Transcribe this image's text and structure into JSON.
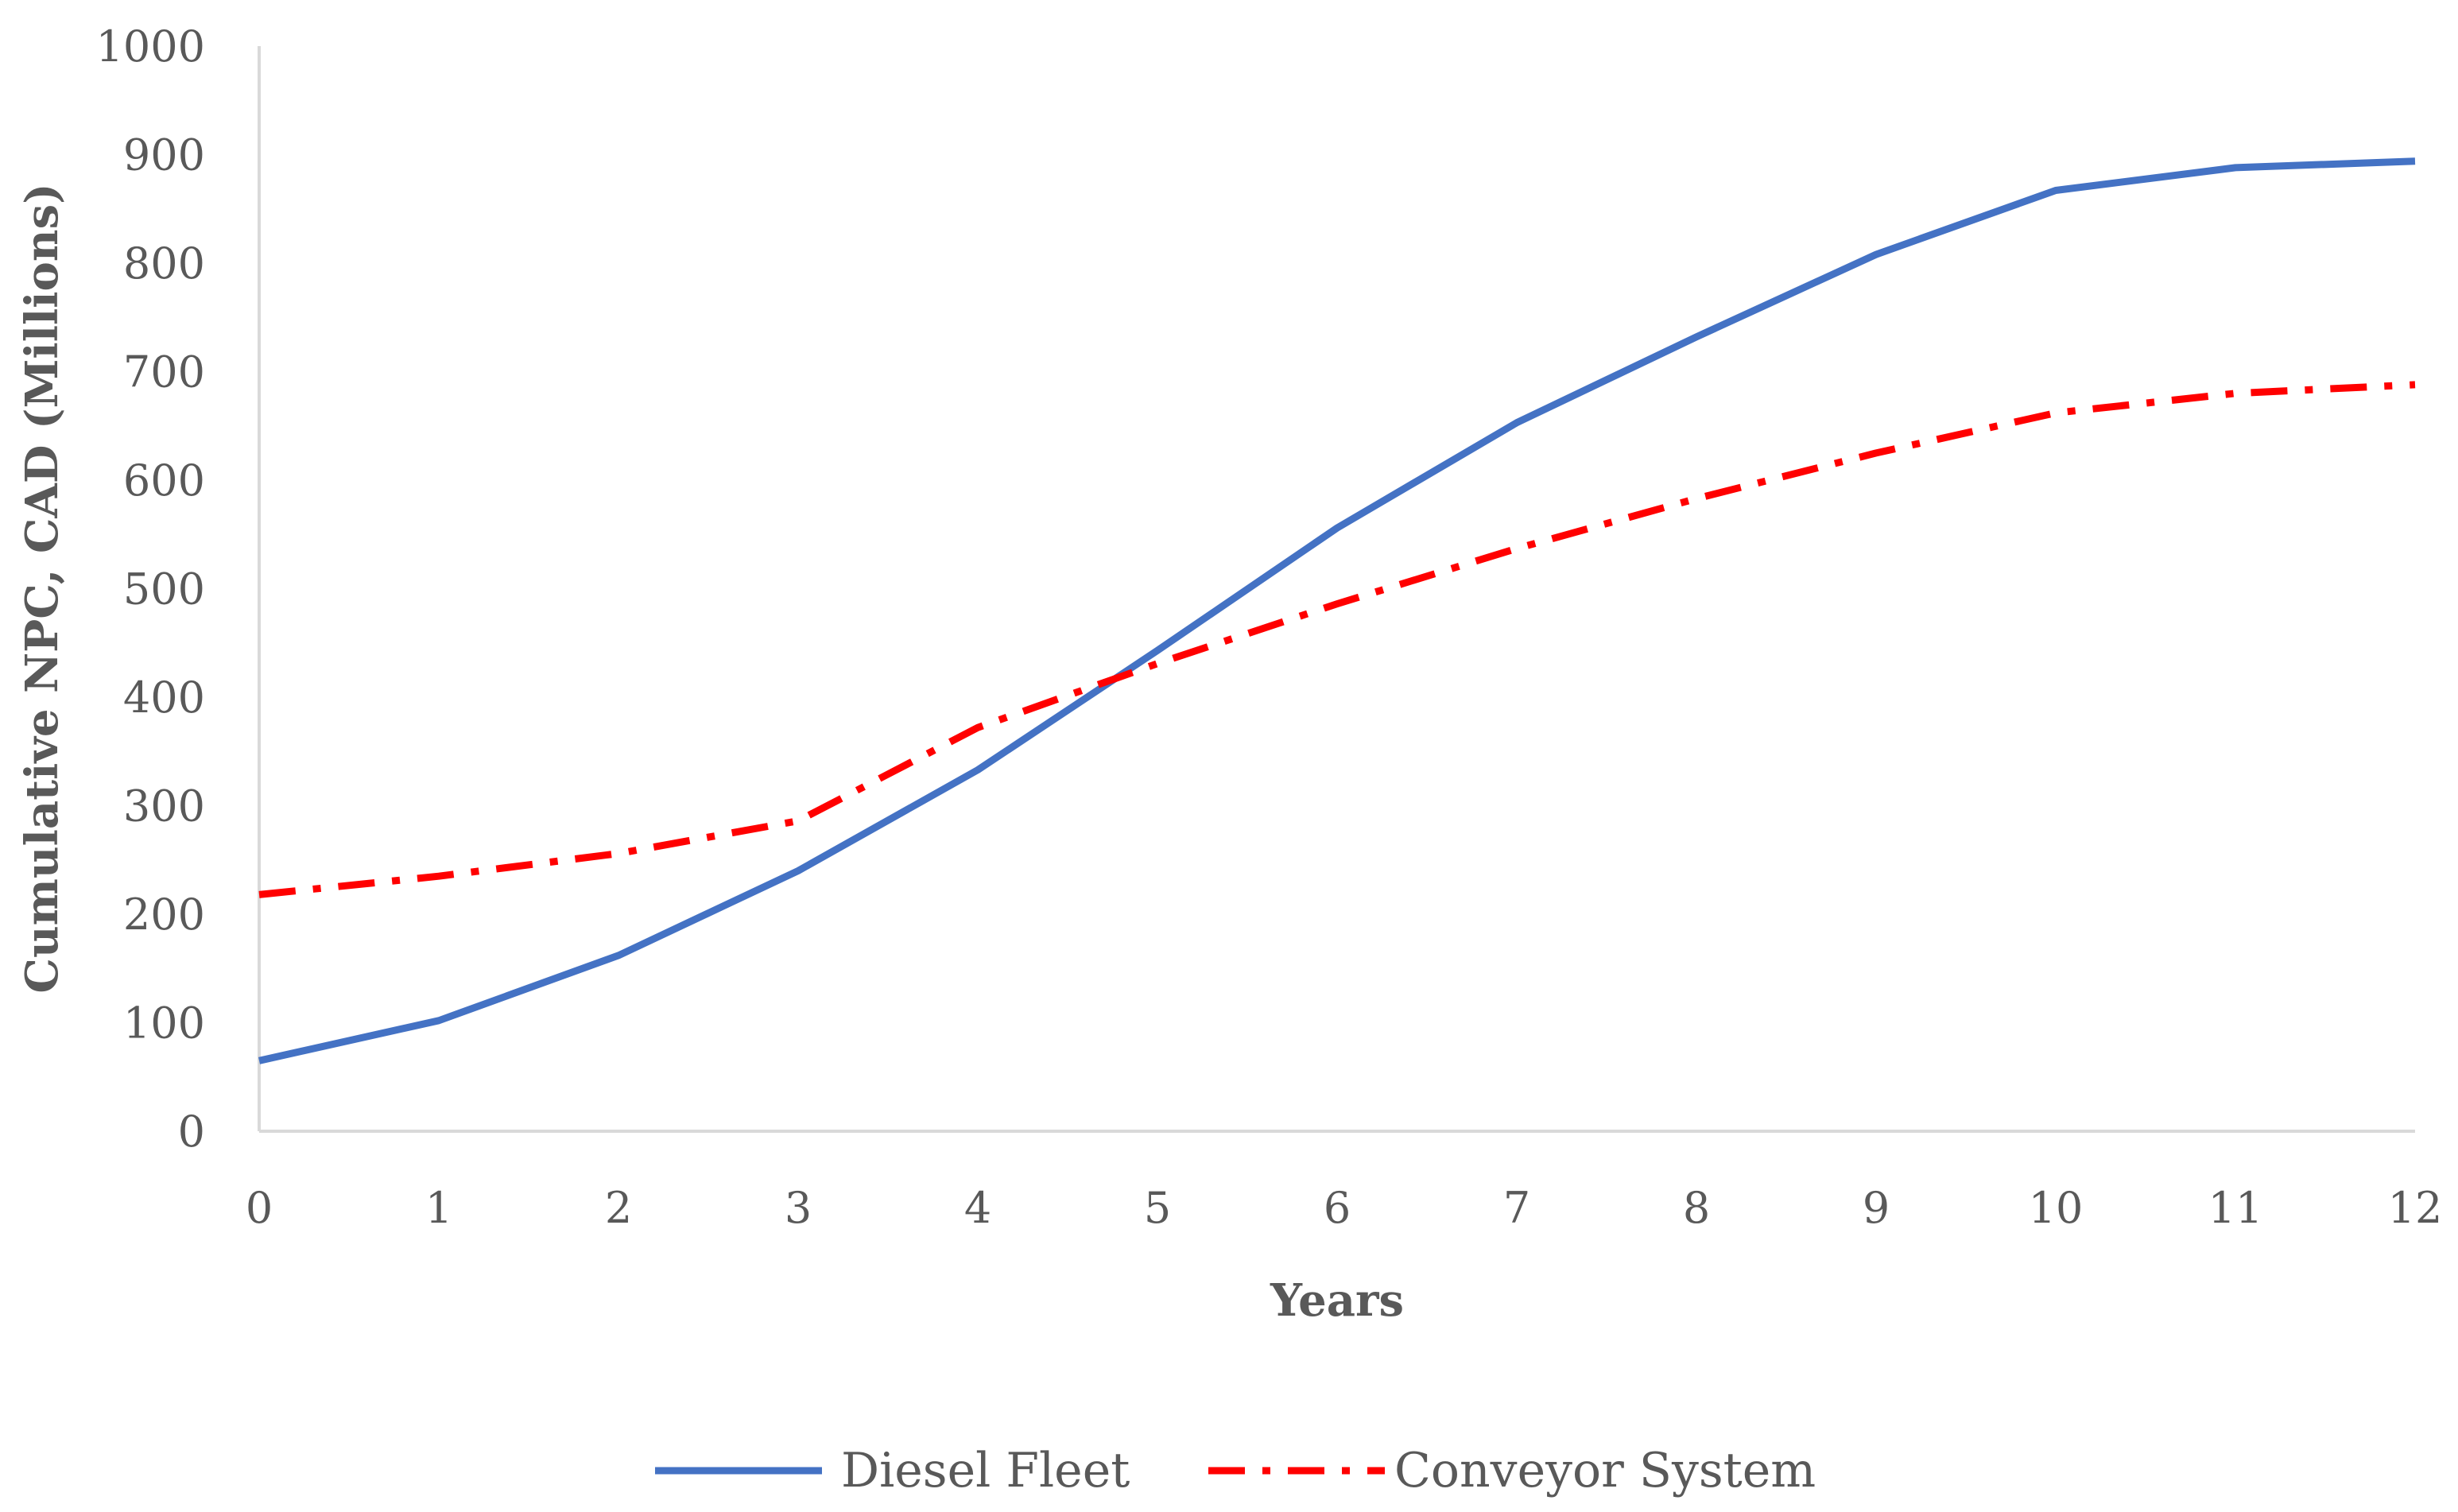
{
  "chart_data": {
    "type": "line",
    "title": "",
    "xlabel": "Years",
    "ylabel": "Cumulative NPC, CAD (Millions)",
    "x": [
      0,
      1,
      2,
      3,
      4,
      5,
      6,
      7,
      8,
      9,
      10,
      11,
      12
    ],
    "xlim": [
      0,
      12
    ],
    "ylim": [
      0,
      1000
    ],
    "yticks": [
      0,
      100,
      200,
      300,
      400,
      500,
      600,
      700,
      800,
      900,
      1000
    ],
    "grid": false,
    "legend": "bottom",
    "series": [
      {
        "name": "Diesel Fleet",
        "color": "#4472C4",
        "style": "solid",
        "values": [
          65,
          102,
          162,
          240,
          333,
          443,
          556,
          653,
          732,
          808,
          867,
          888,
          894
        ]
      },
      {
        "name": "Conveyor System",
        "color": "#FF0000",
        "style": "dash-dot",
        "values": [
          218,
          235,
          256,
          286,
          372,
          431,
          486,
          537,
          583,
          625,
          662,
          680,
          688
        ]
      }
    ]
  }
}
